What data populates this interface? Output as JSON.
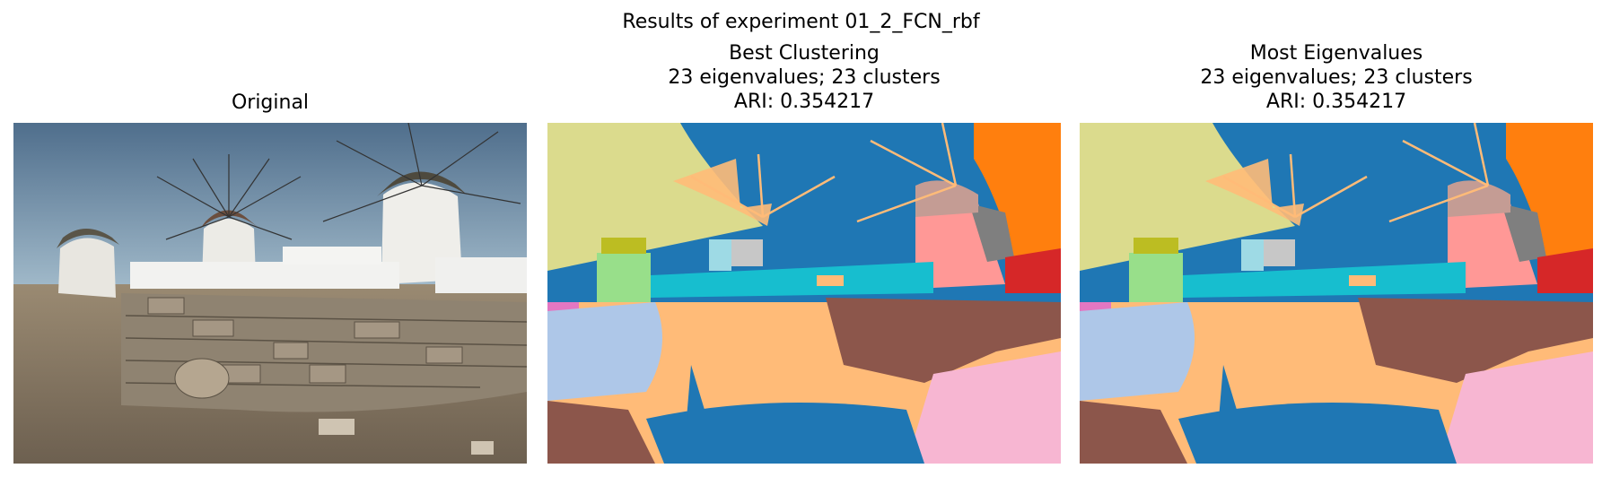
{
  "figure": {
    "suptitle": "Results of experiment 01_2_FCN_rbf"
  },
  "panels": [
    {
      "title_lines": [
        "Original"
      ],
      "image": "original-photo-windmills"
    },
    {
      "title_lines": [
        "Best Clustering",
        "23 eigenvalues; 23 clusters",
        "ARI: 0.354217"
      ],
      "image": "segmentation-map"
    },
    {
      "title_lines": [
        "Most Eigenvalues",
        "23 eigenvalues; 23 clusters",
        "ARI: 0.354217"
      ],
      "image": "segmentation-map"
    }
  ],
  "colors": {
    "sky_segment": "#1f77b4",
    "sky_left_segment": "#dbdb8d",
    "ground_segment": "#ffbb78",
    "wall_segment": "#8c564b",
    "shadow_segment": "#aec7e8",
    "bright_segment": "#f7b6d2",
    "cyan_segment": "#17becf",
    "orange_segment": "#ff7f0e",
    "pink_segment": "#ff9896",
    "red_segment": "#d62728",
    "gray_segment": "#7f7f7f",
    "green_segment": "#98df8a",
    "magenta_segment": "#e377c2",
    "light_gray_segment": "#c7c7c7",
    "olive_segment": "#bcbd22"
  }
}
